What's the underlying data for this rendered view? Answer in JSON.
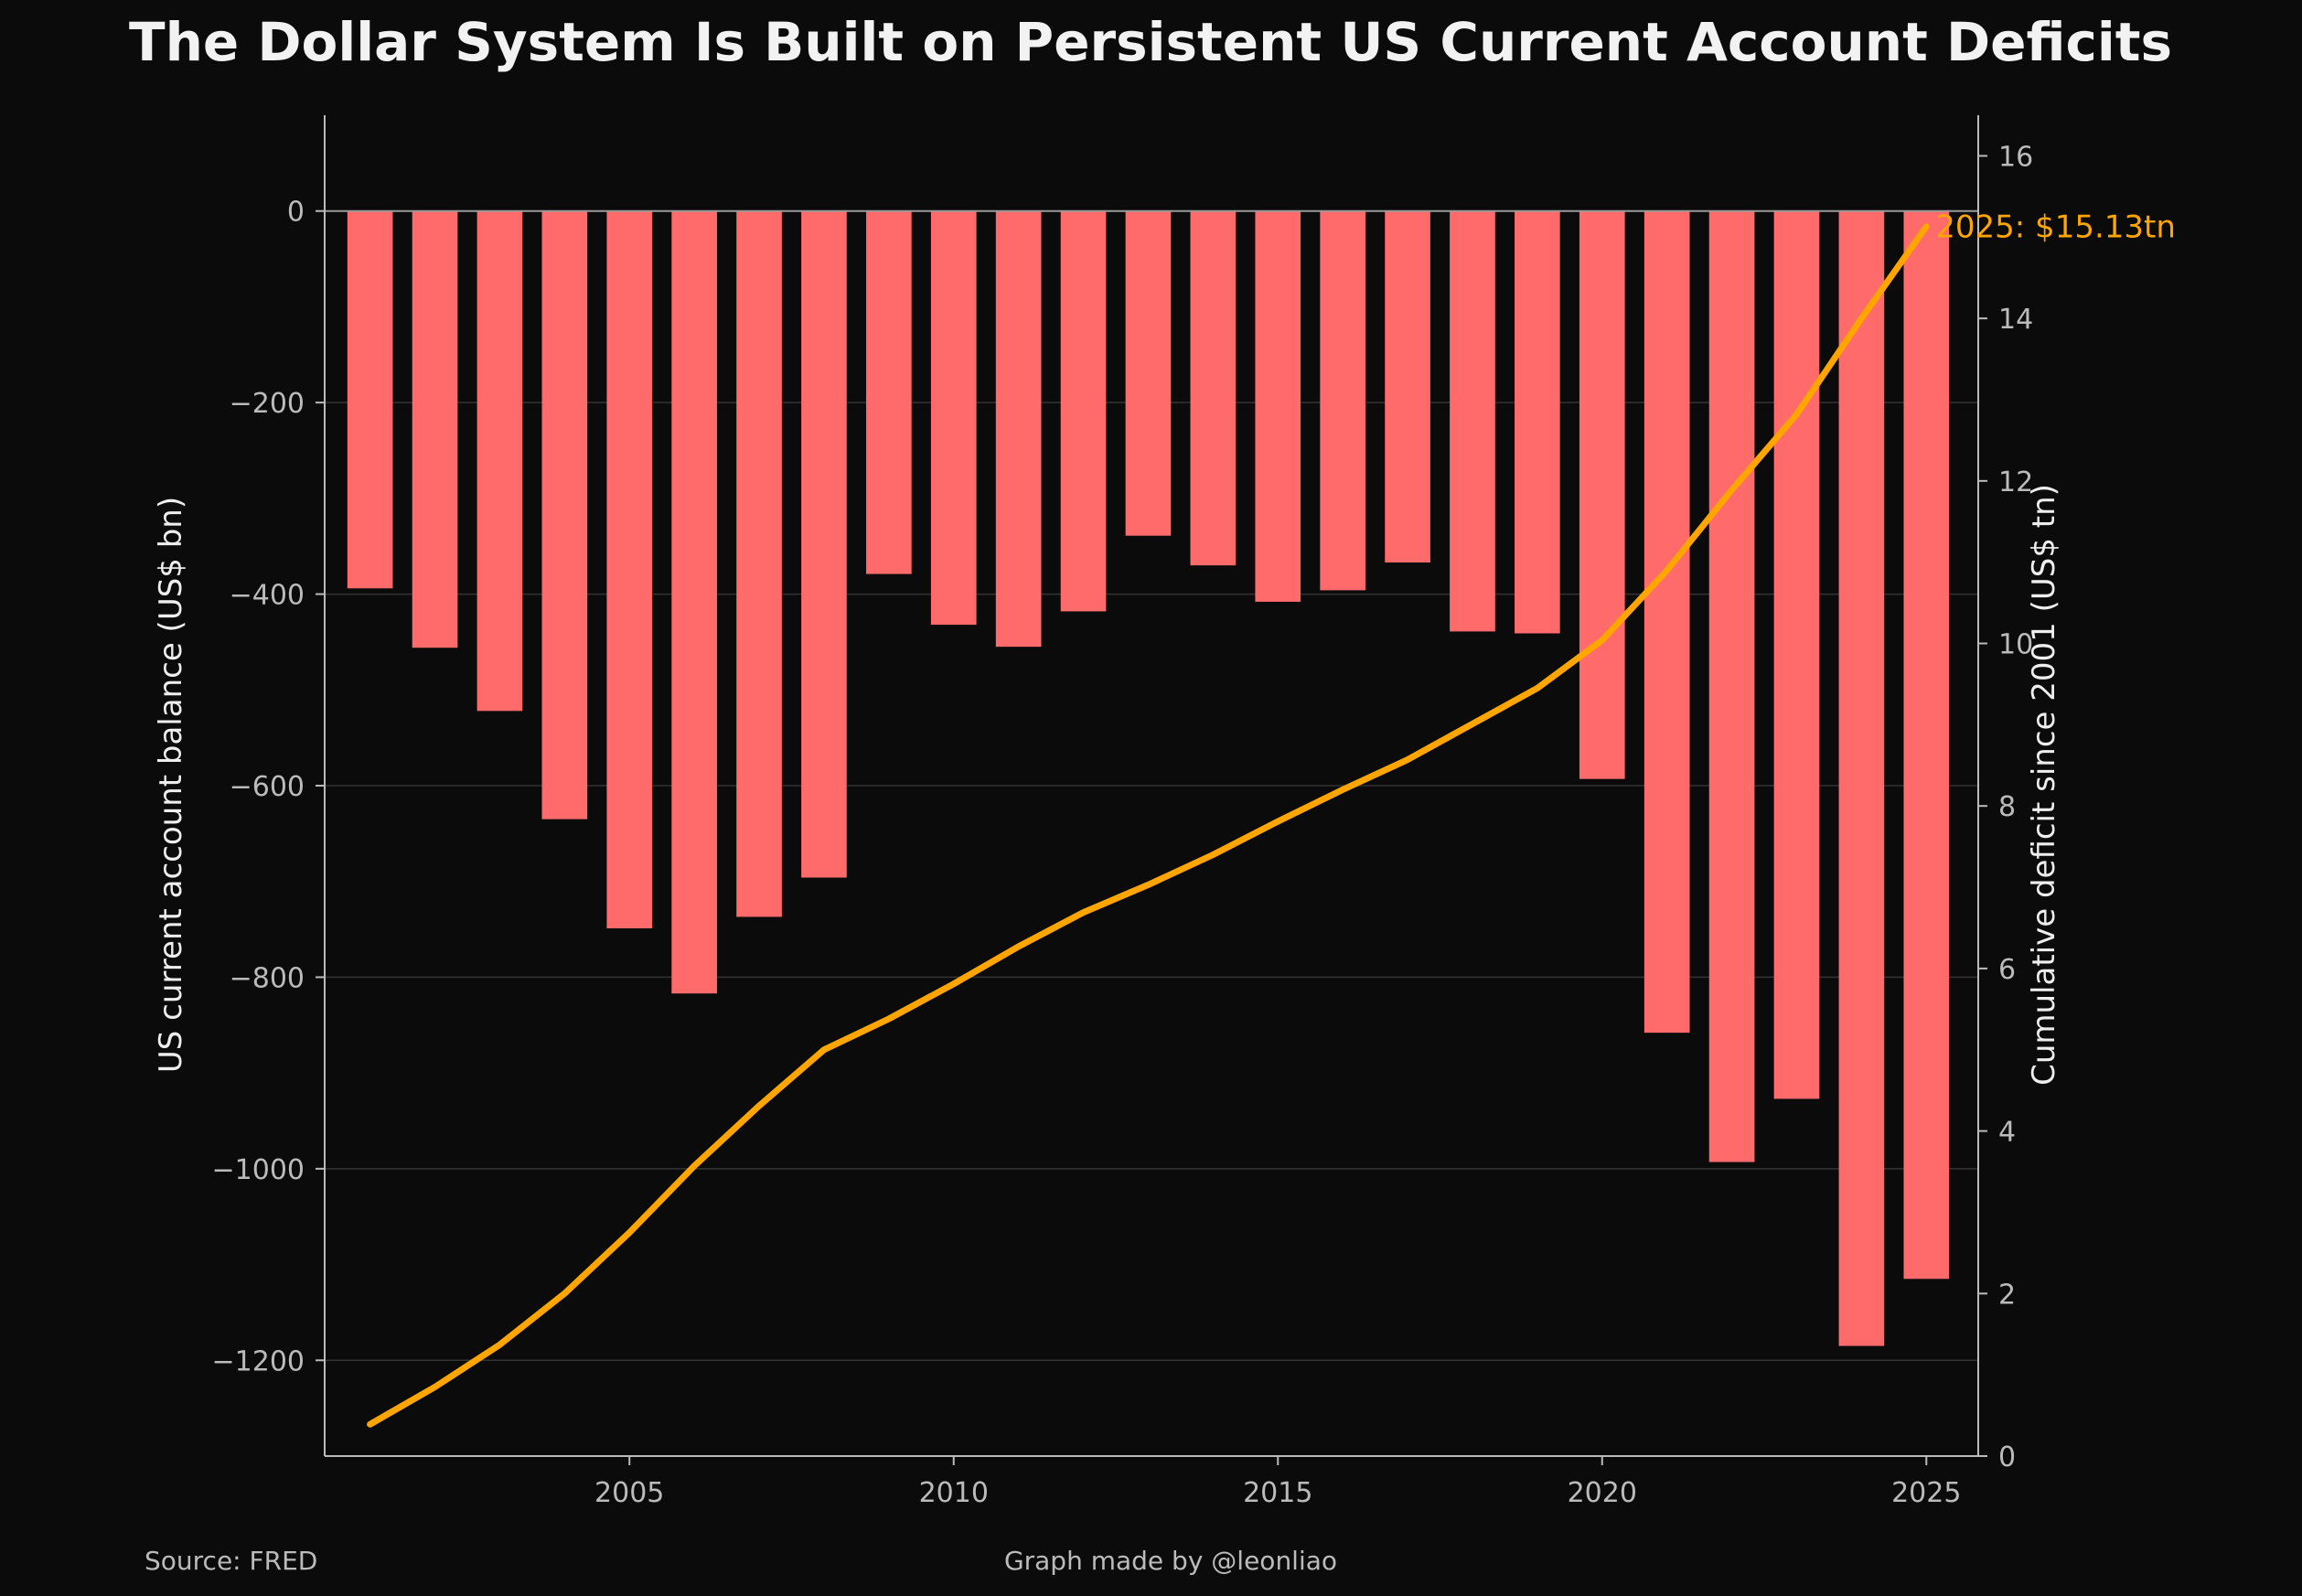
{
  "page": {
    "title": "The Dollar System Is Built on Persistent US Current Account Deficits",
    "source": "Source: FRED",
    "credit": "Graph made by @leonliao"
  },
  "colors": {
    "background": "#0b0b0b",
    "bar": "#ff6b6b",
    "line": "#ffa500",
    "axis": "#bbbbbb",
    "grid": "#333333",
    "tick_text": "#bbbbbb",
    "label_text": "#eeeeee"
  },
  "chart_data": {
    "type": "bar+line",
    "title": "The Dollar System Is Built on Persistent US Current Account Deficits",
    "x": [
      2001,
      2002,
      2003,
      2004,
      2005,
      2006,
      2007,
      2008,
      2009,
      2010,
      2011,
      2012,
      2013,
      2014,
      2015,
      2016,
      2017,
      2018,
      2019,
      2020,
      2021,
      2022,
      2023,
      2024,
      2025
    ],
    "xticks": [
      "2005",
      "2010",
      "2015",
      "2020",
      "2025"
    ],
    "xlim": [
      2000.3,
      2025.8
    ],
    "left_axis": {
      "label": "US current account balance (US$ bn)",
      "ylim": [
        -1300,
        100
      ],
      "ticks": [
        "0",
        "−200",
        "−400",
        "−600",
        "−800",
        "−1000",
        "−1200"
      ],
      "grid": true
    },
    "right_axis": {
      "label": "Cumulative deficit since 2001 (US$ tn)",
      "ylim": [
        0,
        16.5
      ],
      "ticks": [
        "0",
        "2",
        "4",
        "6",
        "8",
        "10",
        "12",
        "14",
        "16"
      ]
    },
    "series": [
      {
        "type": "bar",
        "axis": "left",
        "values": [
          -394,
          -456,
          -522,
          -635,
          -749,
          -817,
          -737,
          -696,
          -379,
          -432,
          -455,
          -418,
          -339,
          -370,
          -408,
          -396,
          -367,
          -439,
          -441,
          -593,
          -858,
          -993,
          -927,
          -1185,
          -1115
        ]
      },
      {
        "type": "line",
        "axis": "right",
        "values": [
          0.39,
          0.85,
          1.37,
          2.0,
          2.75,
          3.57,
          4.31,
          5.0,
          5.38,
          5.81,
          6.27,
          6.69,
          7.03,
          7.4,
          7.81,
          8.2,
          8.57,
          9.01,
          9.45,
          10.04,
          10.9,
          11.89,
          12.82,
          14.0,
          15.13
        ]
      }
    ],
    "annotations": [
      {
        "x": 2025,
        "y": 15.13,
        "axis": "right",
        "text": "2025: $15.13tn"
      }
    ]
  }
}
